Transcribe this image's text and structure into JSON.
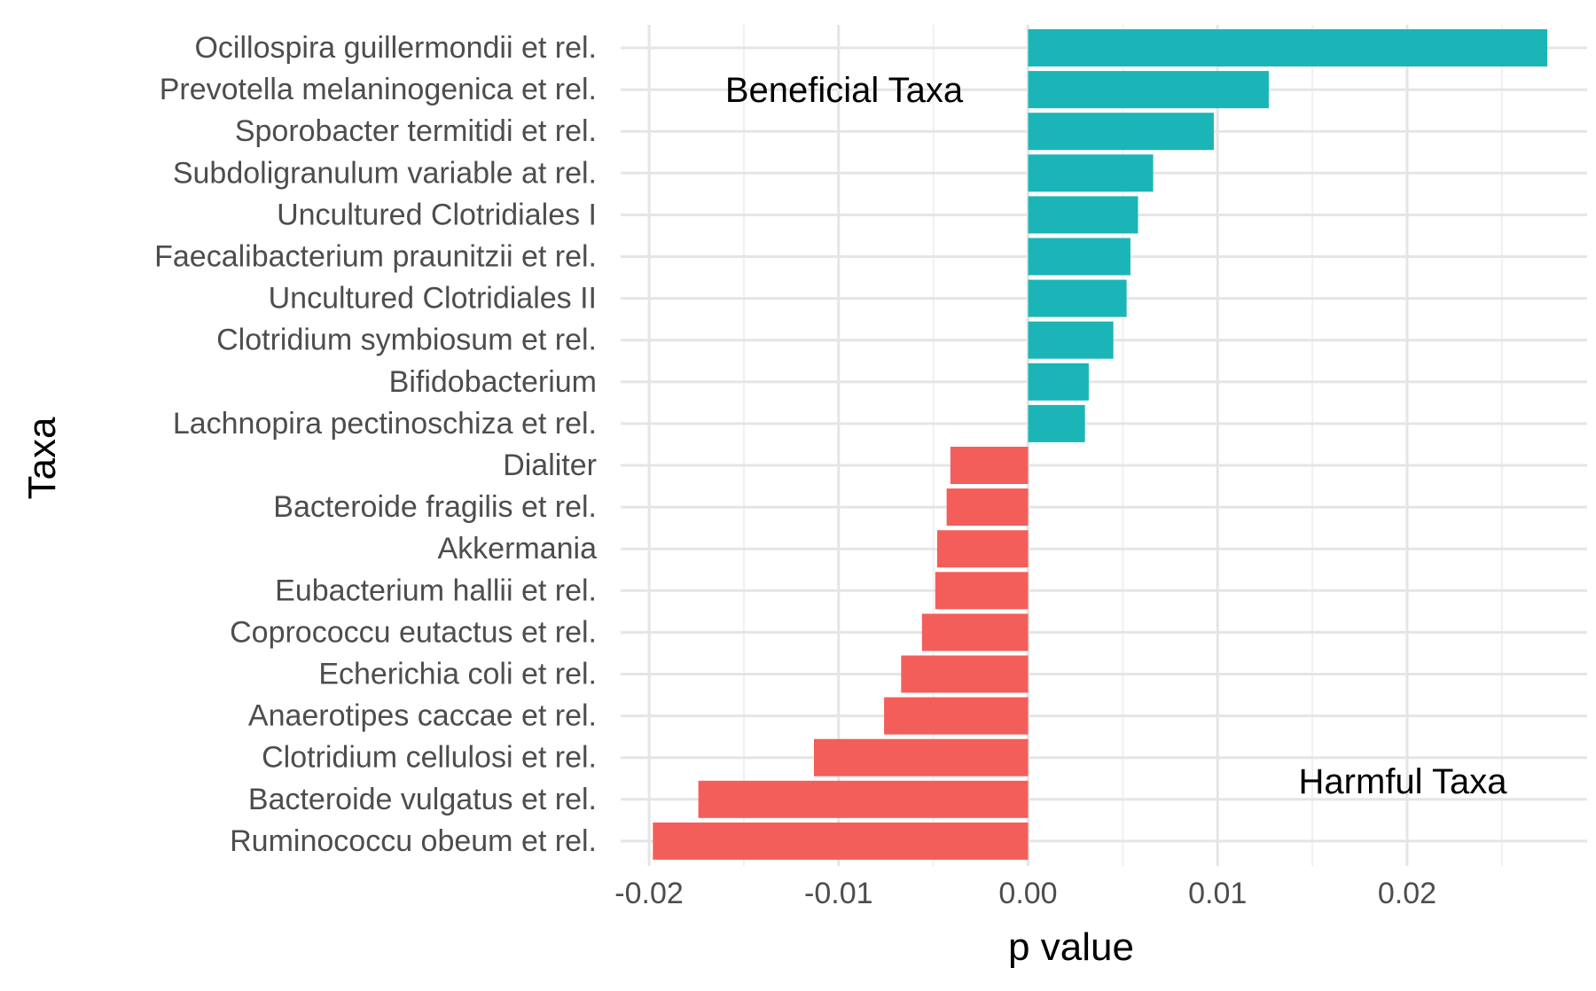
{
  "chart_data": {
    "type": "bar",
    "orientation": "horizontal",
    "title": "",
    "xlabel": "p value",
    "ylabel": "Taxa",
    "xlim": [
      -0.0215,
      0.0295
    ],
    "xticks": [
      -0.02,
      -0.01,
      0.0,
      0.01,
      0.02
    ],
    "xtick_labels": [
      "-0.02",
      "-0.01",
      "0.00",
      "0.01",
      "0.02"
    ],
    "grid": true,
    "legend": "none",
    "colors": {
      "beneficial": "#1bb5b8",
      "harmful": "#f35e5a"
    },
    "categories": [
      "Ocillospira guillermondii et rel.",
      "Prevotella melaninogenica et rel.",
      "Sporobacter termitidi et rel.",
      "Subdoligranulum variable at rel.",
      "Uncultured Clotridiales I",
      "Faecalibacterium praunitzii et rel.",
      "Uncultured Clotridiales II",
      "Clotridium symbiosum et rel.",
      "Bifidobacterium",
      "Lachnopira pectinoschiza et rel.",
      "Dialiter",
      "Bacteroide fragilis et rel.",
      "Akkermania",
      "Eubacterium hallii et rel.",
      "Coprococcu eutactus et rel.",
      "Echerichia coli et rel.",
      "Anaerotipes caccae et rel.",
      "Clotridium cellulosi et rel.",
      "Bacteroide vulgatus et rel.",
      "Ruminococcu obeum et rel."
    ],
    "values": [
      0.0274,
      0.0127,
      0.0098,
      0.0066,
      0.0058,
      0.0054,
      0.0052,
      0.0045,
      0.0032,
      0.003,
      -0.0041,
      -0.0043,
      -0.0048,
      -0.0049,
      -0.0056,
      -0.0067,
      -0.0076,
      -0.0113,
      -0.0174,
      -0.0198
    ],
    "groups": [
      "beneficial",
      "beneficial",
      "beneficial",
      "beneficial",
      "beneficial",
      "beneficial",
      "beneficial",
      "beneficial",
      "beneficial",
      "beneficial",
      "harmful",
      "harmful",
      "harmful",
      "harmful",
      "harmful",
      "harmful",
      "harmful",
      "harmful",
      "harmful",
      "harmful"
    ],
    "annotations": [
      "Beneficial Taxa",
      "Harmful Taxa"
    ]
  }
}
